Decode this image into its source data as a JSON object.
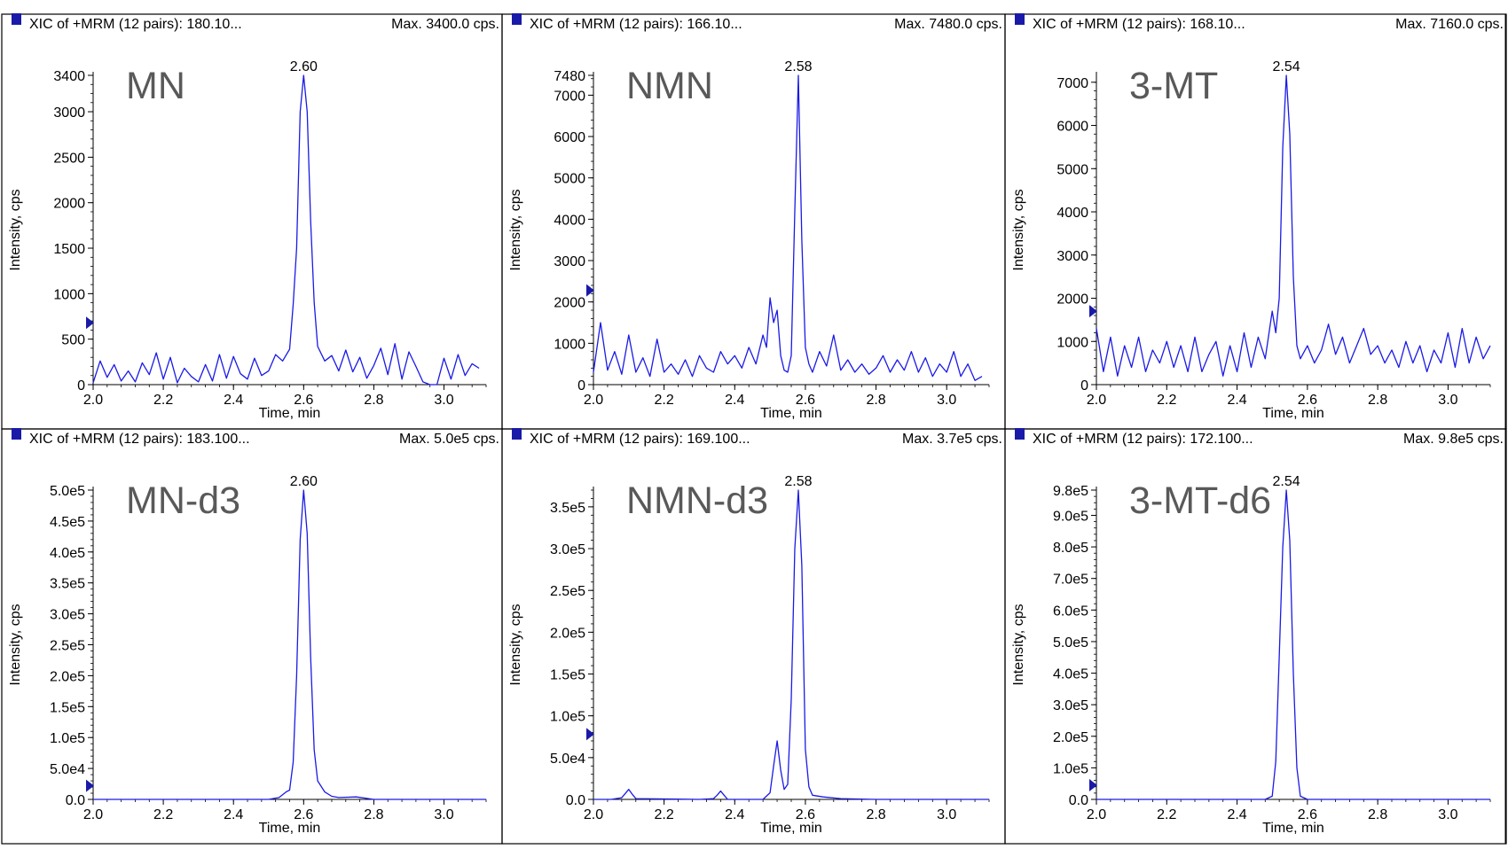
{
  "chart_data": [
    {
      "type": "line",
      "header": "XIC of +MRM (12 pairs): 180.10...",
      "max_label": "Max. 3400.0 cps.",
      "compound": "MN",
      "xlabel": "Time, min",
      "ylabel": "Intensity, cps",
      "xlim": [
        2.0,
        3.12
      ],
      "ylim": [
        0,
        3400
      ],
      "yticks": [
        "0",
        "500",
        "1000",
        "1500",
        "2000",
        "2500",
        "3000",
        "3400"
      ],
      "ytick_values": [
        0,
        500,
        1000,
        1500,
        2000,
        2500,
        3000,
        3400
      ],
      "xticks": [
        "2.0",
        "2.2",
        "2.4",
        "2.6",
        "2.8",
        "3.0"
      ],
      "xtick_values": [
        2.0,
        2.2,
        2.4,
        2.6,
        2.8,
        3.0
      ],
      "peak_label": "2.60",
      "peak": {
        "rt": 2.6,
        "height": 3400
      },
      "marker_y": 680,
      "series": [
        {
          "x": [
            2.0,
            2.02,
            2.04,
            2.06,
            2.08,
            2.1,
            2.12,
            2.14,
            2.16,
            2.18,
            2.2,
            2.22,
            2.24,
            2.26,
            2.28,
            2.3,
            2.32,
            2.34,
            2.36,
            2.38,
            2.4,
            2.42,
            2.44,
            2.46,
            2.48,
            2.5,
            2.52,
            2.54,
            2.56,
            2.57,
            2.58,
            2.59,
            2.6,
            2.61,
            2.62,
            2.63,
            2.64,
            2.66,
            2.68,
            2.7,
            2.72,
            2.74,
            2.76,
            2.78,
            2.8,
            2.82,
            2.84,
            2.86,
            2.88,
            2.9,
            2.92,
            2.94,
            2.96,
            2.98,
            3.0,
            3.02,
            3.04,
            3.06,
            3.08,
            3.1
          ],
          "y": [
            20,
            260,
            80,
            220,
            40,
            150,
            30,
            240,
            110,
            350,
            60,
            300,
            20,
            180,
            90,
            30,
            220,
            40,
            330,
            70,
            310,
            120,
            60,
            290,
            100,
            150,
            330,
            260,
            390,
            880,
            1500,
            3000,
            3400,
            3000,
            1800,
            900,
            420,
            260,
            320,
            150,
            380,
            140,
            300,
            70,
            210,
            400,
            110,
            450,
            60,
            360,
            200,
            30,
            0,
            0,
            290,
            60,
            330,
            100,
            230,
            180
          ]
        }
      ]
    },
    {
      "type": "line",
      "header": "XIC of +MRM (12 pairs): 166.10...",
      "max_label": "Max. 7480.0 cps.",
      "compound": "NMN",
      "xlabel": "Time, min",
      "ylabel": "Intensity, cps",
      "xlim": [
        2.0,
        3.12
      ],
      "ylim": [
        0,
        7480
      ],
      "yticks": [
        "0",
        "1000",
        "2000",
        "3000",
        "4000",
        "5000",
        "6000",
        "7000",
        "7480"
      ],
      "ytick_values": [
        0,
        1000,
        2000,
        3000,
        4000,
        5000,
        6000,
        7000,
        7480
      ],
      "xticks": [
        "2.0",
        "2.2",
        "2.4",
        "2.6",
        "2.8",
        "3.0"
      ],
      "xtick_values": [
        2.0,
        2.2,
        2.4,
        2.6,
        2.8,
        3.0
      ],
      "peak_label": "2.58",
      "peak": {
        "rt": 2.58,
        "height": 7480
      },
      "marker_y": 2280,
      "series": [
        {
          "x": [
            2.0,
            2.02,
            2.04,
            2.06,
            2.08,
            2.1,
            2.12,
            2.14,
            2.16,
            2.18,
            2.2,
            2.22,
            2.24,
            2.26,
            2.28,
            2.3,
            2.32,
            2.34,
            2.36,
            2.38,
            2.4,
            2.42,
            2.44,
            2.46,
            2.48,
            2.49,
            2.5,
            2.51,
            2.52,
            2.53,
            2.54,
            2.55,
            2.56,
            2.57,
            2.58,
            2.59,
            2.6,
            2.61,
            2.62,
            2.64,
            2.66,
            2.68,
            2.7,
            2.72,
            2.74,
            2.76,
            2.78,
            2.8,
            2.82,
            2.84,
            2.86,
            2.88,
            2.9,
            2.92,
            2.94,
            2.96,
            2.98,
            3.0,
            3.02,
            3.04,
            3.06,
            3.08,
            3.1
          ],
          "y": [
            300,
            1500,
            350,
            800,
            250,
            1200,
            300,
            650,
            200,
            1100,
            300,
            500,
            250,
            600,
            200,
            700,
            400,
            300,
            800,
            500,
            700,
            400,
            900,
            500,
            1200,
            900,
            2100,
            1500,
            1800,
            700,
            350,
            300,
            700,
            4200,
            7480,
            3500,
            900,
            500,
            300,
            800,
            450,
            1200,
            350,
            600,
            300,
            500,
            250,
            400,
            700,
            300,
            600,
            350,
            800,
            300,
            650,
            200,
            500,
            300,
            800,
            200,
            500,
            100,
            200
          ]
        }
      ]
    },
    {
      "type": "line",
      "header": "XIC of +MRM (12 pairs): 168.10...",
      "max_label": "Max. 7160.0 cps.",
      "compound": "3-MT",
      "xlabel": "Time, min",
      "ylabel": "Intensity, cps",
      "xlim": [
        2.0,
        3.12
      ],
      "ylim": [
        0,
        7160
      ],
      "yticks": [
        "0",
        "1000",
        "2000",
        "3000",
        "4000",
        "5000",
        "6000",
        "7000"
      ],
      "ytick_values": [
        0,
        1000,
        2000,
        3000,
        4000,
        5000,
        6000,
        7000
      ],
      "xticks": [
        "2.0",
        "2.2",
        "2.4",
        "2.6",
        "2.8",
        "3.0"
      ],
      "xtick_values": [
        2.0,
        2.2,
        2.4,
        2.6,
        2.8,
        3.0
      ],
      "peak_label": "2.54",
      "peak": {
        "rt": 2.54,
        "height": 7160
      },
      "marker_y": 1700,
      "series": [
        {
          "x": [
            2.0,
            2.02,
            2.04,
            2.06,
            2.08,
            2.1,
            2.12,
            2.14,
            2.16,
            2.18,
            2.2,
            2.22,
            2.24,
            2.26,
            2.28,
            2.3,
            2.32,
            2.34,
            2.36,
            2.38,
            2.4,
            2.42,
            2.44,
            2.46,
            2.48,
            2.5,
            2.51,
            2.52,
            2.53,
            2.54,
            2.55,
            2.56,
            2.57,
            2.58,
            2.6,
            2.62,
            2.64,
            2.66,
            2.68,
            2.7,
            2.72,
            2.74,
            2.76,
            2.78,
            2.8,
            2.82,
            2.84,
            2.86,
            2.88,
            2.9,
            2.92,
            2.94,
            2.96,
            2.98,
            3.0,
            3.02,
            3.04,
            3.06,
            3.08,
            3.1,
            3.12
          ],
          "y": [
            1300,
            300,
            1100,
            200,
            900,
            400,
            1100,
            300,
            800,
            500,
            1000,
            400,
            900,
            300,
            1100,
            300,
            700,
            1000,
            200,
            900,
            300,
            1200,
            400,
            1100,
            600,
            1700,
            1200,
            2000,
            5500,
            7160,
            5800,
            2500,
            900,
            600,
            900,
            500,
            800,
            1400,
            700,
            1100,
            500,
            900,
            1300,
            700,
            900,
            500,
            800,
            400,
            1000,
            500,
            900,
            300,
            800,
            500,
            1200,
            400,
            1300,
            500,
            1100,
            600,
            900
          ]
        }
      ]
    },
    {
      "type": "line",
      "header": "XIC of +MRM (12 pairs): 183.100...",
      "max_label": "Max. 5.0e5 cps.",
      "compound": "MN-d3",
      "xlabel": "Time, min",
      "ylabel": "Intensity, cps",
      "xlim": [
        2.0,
        3.12
      ],
      "ylim": [
        0,
        500000
      ],
      "yticks": [
        "0.0",
        "5.0e4",
        "1.0e5",
        "1.5e5",
        "2.0e5",
        "2.5e5",
        "3.0e5",
        "3.5e5",
        "4.0e5",
        "4.5e5",
        "5.0e5"
      ],
      "ytick_values": [
        0,
        50000,
        100000,
        150000,
        200000,
        250000,
        300000,
        350000,
        400000,
        450000,
        500000
      ],
      "xticks": [
        "2.0",
        "2.2",
        "2.4",
        "2.6",
        "2.8",
        "3.0"
      ],
      "xtick_values": [
        2.0,
        2.2,
        2.4,
        2.6,
        2.8,
        3.0
      ],
      "peak_label": "2.60",
      "peak": {
        "rt": 2.6,
        "height": 500000
      },
      "marker_y": 22000,
      "series": [
        {
          "x": [
            2.0,
            2.2,
            2.4,
            2.5,
            2.53,
            2.55,
            2.56,
            2.57,
            2.58,
            2.59,
            2.6,
            2.61,
            2.62,
            2.63,
            2.64,
            2.66,
            2.68,
            2.7,
            2.75,
            2.8,
            3.0,
            3.12
          ],
          "y": [
            0,
            0,
            0,
            0,
            3000,
            12000,
            15000,
            60000,
            200000,
            420000,
            500000,
            430000,
            230000,
            80000,
            30000,
            12000,
            5000,
            3000,
            4000,
            0,
            0,
            0
          ]
        }
      ]
    },
    {
      "type": "line",
      "header": "XIC of +MRM (12 pairs): 169.100...",
      "max_label": "Max. 3.7e5 cps.",
      "compound": "NMN-d3",
      "xlabel": "Time, min",
      "ylabel": "Intensity, cps",
      "xlim": [
        2.0,
        3.12
      ],
      "ylim": [
        0,
        370000
      ],
      "yticks": [
        "0.0",
        "5.0e4",
        "1.0e5",
        "1.5e5",
        "2.0e5",
        "2.5e5",
        "3.0e5",
        "3.5e5"
      ],
      "ytick_values": [
        0,
        50000,
        100000,
        150000,
        200000,
        250000,
        300000,
        350000
      ],
      "xticks": [
        "2.0",
        "2.2",
        "2.4",
        "2.6",
        "2.8",
        "3.0"
      ],
      "xtick_values": [
        2.0,
        2.2,
        2.4,
        2.6,
        2.8,
        3.0
      ],
      "peak_label": "2.58",
      "peak": {
        "rt": 2.58,
        "height": 370000
      },
      "marker_y": 78000,
      "series": [
        {
          "x": [
            2.0,
            2.05,
            2.08,
            2.09,
            2.1,
            2.11,
            2.12,
            2.3,
            2.34,
            2.35,
            2.36,
            2.37,
            2.38,
            2.48,
            2.5,
            2.51,
            2.52,
            2.53,
            2.54,
            2.55,
            2.56,
            2.57,
            2.58,
            2.59,
            2.6,
            2.61,
            2.62,
            2.65,
            2.7,
            2.8,
            3.12
          ],
          "y": [
            0,
            0,
            2000,
            7000,
            12000,
            6000,
            1000,
            0,
            1000,
            5000,
            10000,
            5000,
            0,
            0,
            8000,
            40000,
            70000,
            35000,
            12000,
            18000,
            120000,
            300000,
            370000,
            280000,
            60000,
            15000,
            5000,
            3000,
            1000,
            0,
            0
          ]
        }
      ]
    },
    {
      "type": "line",
      "header": "XIC of +MRM (12 pairs): 172.100...",
      "max_label": "Max. 9.8e5 cps.",
      "compound": "3-MT-d6",
      "xlabel": "Time, min",
      "ylabel": "Intensity, cps",
      "xlim": [
        2.0,
        3.12
      ],
      "ylim": [
        0,
        980000
      ],
      "yticks": [
        "0.0",
        "1.0e5",
        "2.0e5",
        "3.0e5",
        "4.0e5",
        "5.0e5",
        "6.0e5",
        "7.0e5",
        "8.0e5",
        "9.0e5",
        "9.8e5"
      ],
      "ytick_values": [
        0,
        100000,
        200000,
        300000,
        400000,
        500000,
        600000,
        700000,
        800000,
        900000,
        980000
      ],
      "xticks": [
        "2.0",
        "2.2",
        "2.4",
        "2.6",
        "2.8",
        "3.0"
      ],
      "xtick_values": [
        2.0,
        2.2,
        2.4,
        2.6,
        2.8,
        3.0
      ],
      "peak_label": "2.54",
      "peak": {
        "rt": 2.54,
        "height": 980000
      },
      "marker_y": 45000,
      "series": [
        {
          "x": [
            2.0,
            2.4,
            2.48,
            2.5,
            2.51,
            2.52,
            2.53,
            2.54,
            2.55,
            2.56,
            2.57,
            2.58,
            2.6,
            3.12
          ],
          "y": [
            0,
            0,
            0,
            10000,
            120000,
            450000,
            800000,
            980000,
            820000,
            400000,
            100000,
            10000,
            0,
            0
          ]
        }
      ]
    }
  ],
  "colors": {
    "trace": "#1a1ae6",
    "marker": "#1a1aa8",
    "frame": "#000000",
    "compound_label": "#595959",
    "text": "#000000"
  }
}
